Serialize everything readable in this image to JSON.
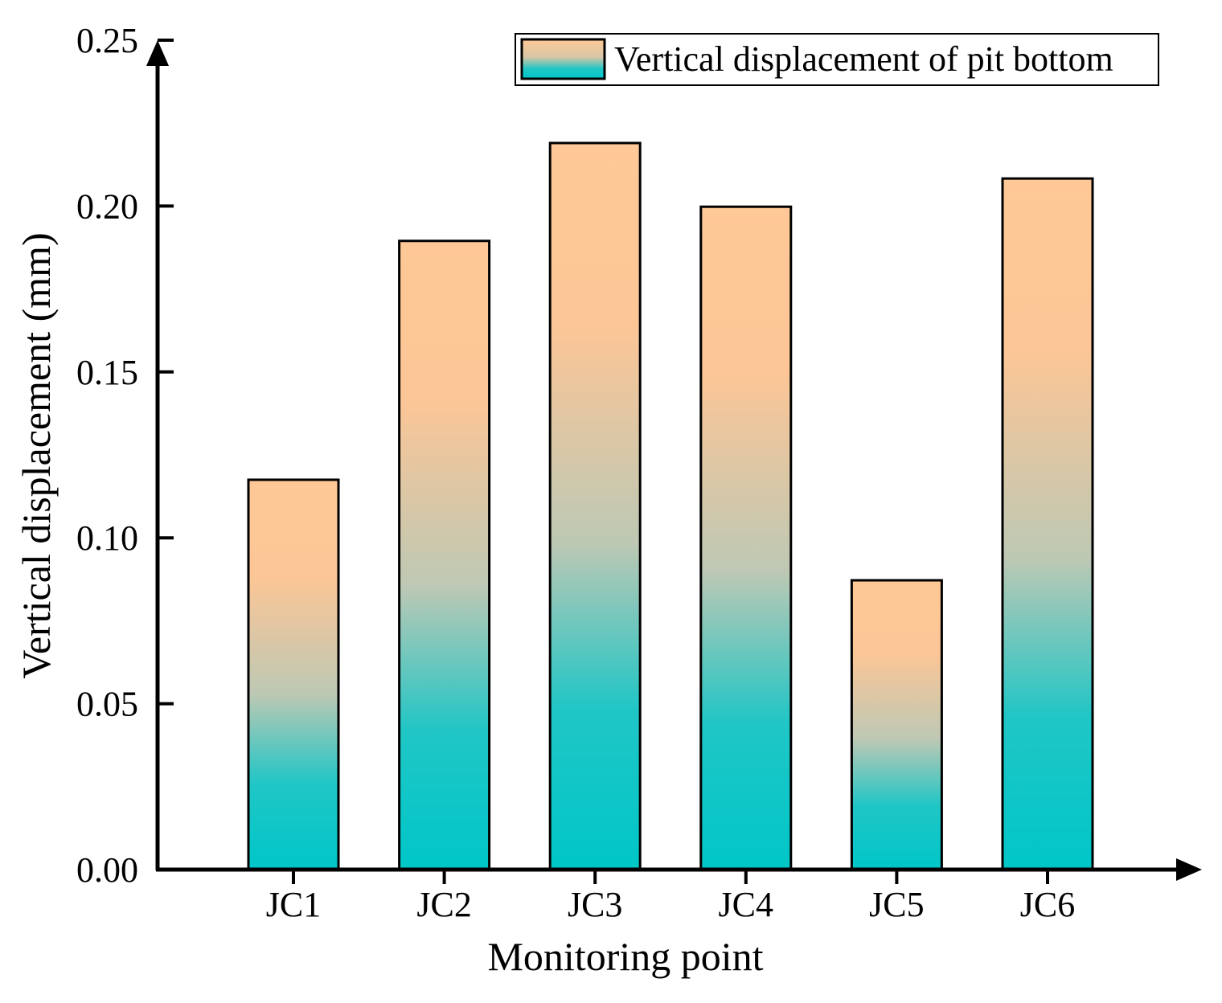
{
  "chart_data": {
    "type": "bar",
    "title": "",
    "xlabel": "Monitoring point",
    "ylabel": "Vertical displacement (mm)",
    "categories": [
      "JC1",
      "JC2",
      "JC3",
      "JC4",
      "JC5",
      "JC6"
    ],
    "series": [
      {
        "name": "Vertical displacement of pit bottom",
        "values": [
          0.1175,
          0.1895,
          0.219,
          0.1998,
          0.0872,
          0.2083
        ]
      }
    ],
    "ylim": [
      0,
      0.25
    ],
    "yticks": [
      "0.00",
      "0.05",
      "0.10",
      "0.15",
      "0.20",
      "0.25"
    ],
    "grid": false,
    "legend_position": "top-right",
    "colors": {
      "bar_top": "#ffc896",
      "bar_bottom": "#00c6c8",
      "edge": "#000000"
    }
  }
}
